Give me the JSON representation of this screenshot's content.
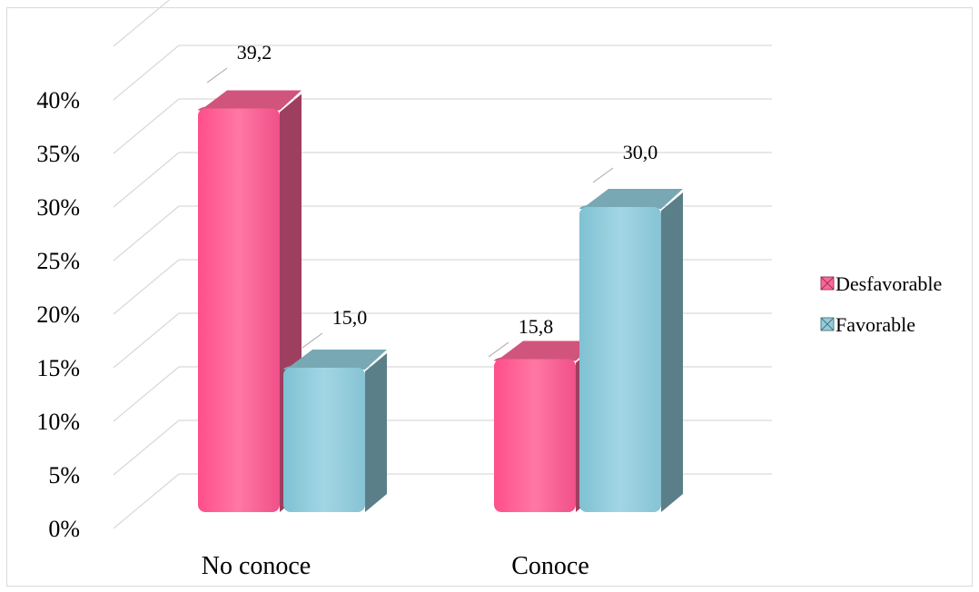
{
  "chart_data": {
    "type": "bar",
    "categories": [
      "No conoce",
      "Conoce"
    ],
    "series": [
      {
        "name": "Desfavorable",
        "values": [
          39.2,
          15.8
        ],
        "color": "#ff6699",
        "labels": [
          "39,2",
          "15,8"
        ]
      },
      {
        "name": "Favorable",
        "values": [
          15.0,
          30.0
        ],
        "color": "#92cddc",
        "labels": [
          "15,0",
          "30,0"
        ]
      }
    ],
    "ylim": [
      0,
      40
    ],
    "yticks": [
      0,
      5,
      10,
      15,
      20,
      25,
      30,
      35,
      40
    ],
    "ytick_labels": [
      "0%",
      "5%",
      "10%",
      "15%",
      "20%",
      "25%",
      "30%",
      "35%",
      "40%"
    ],
    "grid": true,
    "legend": "right",
    "style": "3d-clustered-column"
  }
}
